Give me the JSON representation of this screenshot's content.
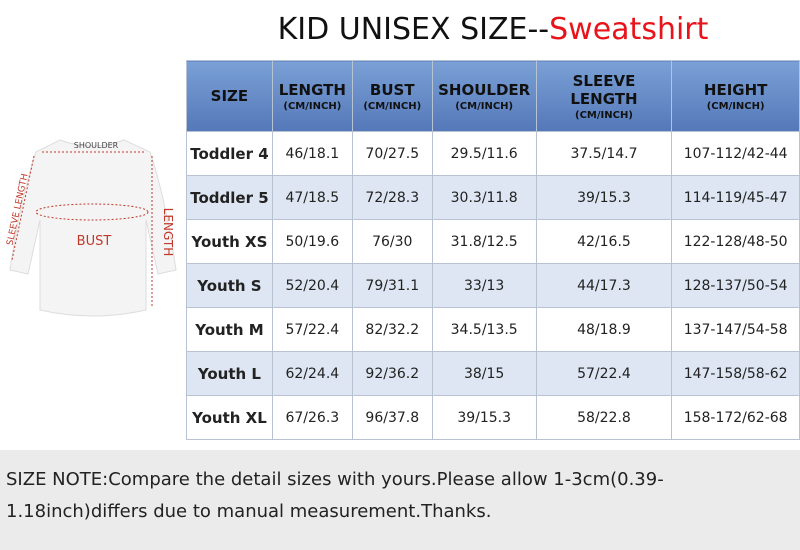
{
  "title": {
    "main": "KID UNISEX SIZE--",
    "accent": "Sweatshirt"
  },
  "diagram": {
    "shoulder": "SHOULDER",
    "sleeve": "SLEEVE LENGTH",
    "bust": "BUST",
    "length": "LENGTH"
  },
  "table": {
    "header": [
      {
        "title": "SIZE"
      },
      {
        "title": "LENGTH",
        "unit": "(CM/INCH)"
      },
      {
        "title": "BUST",
        "unit": "(CM/INCH)"
      },
      {
        "title": "SHOULDER",
        "unit": "(CM/INCH)"
      },
      {
        "title": "SLEEVE LENGTH",
        "unit": "(CM/INCH)"
      },
      {
        "title": "HEIGHT",
        "unit": "(CM/INCH)"
      }
    ],
    "rows": [
      [
        "Toddler 4",
        "46/18.1",
        "70/27.5",
        "29.5/11.6",
        "37.5/14.7",
        "107-112/42-44"
      ],
      [
        "Toddler 5",
        "47/18.5",
        "72/28.3",
        "30.3/11.8",
        "39/15.3",
        "114-119/45-47"
      ],
      [
        "Youth XS",
        "50/19.6",
        "76/30",
        "31.8/12.5",
        "42/16.5",
        "122-128/48-50"
      ],
      [
        "Youth S",
        "52/20.4",
        "79/31.1",
        "33/13",
        "44/17.3",
        "128-137/50-54"
      ],
      [
        "Youth M",
        "57/22.4",
        "82/32.2",
        "34.5/13.5",
        "48/18.9",
        "137-147/54-58"
      ],
      [
        "Youth L",
        "62/24.4",
        "92/36.2",
        "38/15",
        "57/22.4",
        "147-158/58-62"
      ],
      [
        "Youth XL",
        "67/26.3",
        "96/37.8",
        "39/15.3",
        "58/22.8",
        "158-172/62-68"
      ]
    ]
  },
  "note": {
    "lines": [
      "SIZE NOTE:Compare the detail sizes with yours.Please allow 1-3cm(0.39-",
      "1.18inch)differs due to manual measurement.Thanks."
    ]
  }
}
